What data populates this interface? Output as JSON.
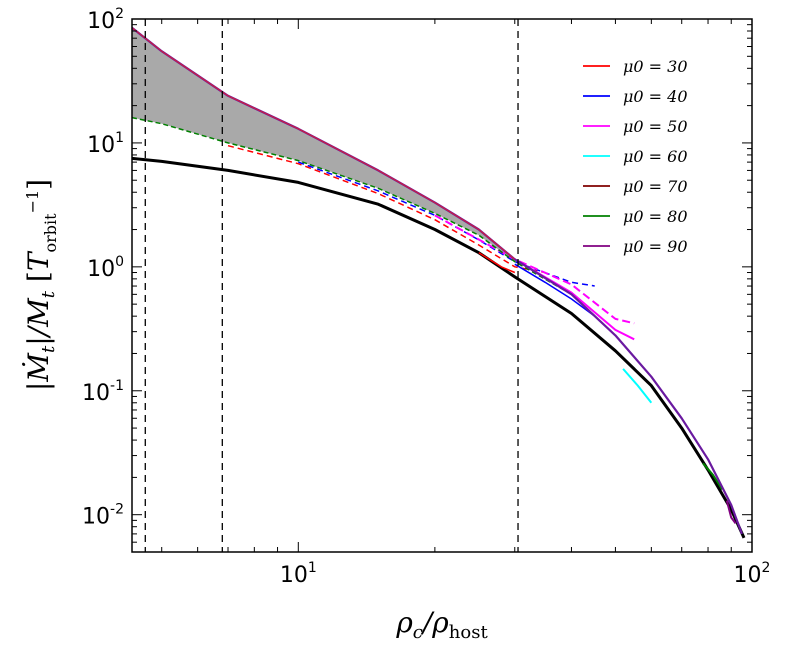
{
  "chart_data": {
    "type": "line",
    "xscale": "log",
    "yscale": "log",
    "xlim": [
      4.3,
      100
    ],
    "ylim": [
      0.005,
      100
    ],
    "xticks": [
      {
        "value": 10,
        "base": "10",
        "exp": "1"
      },
      {
        "value": 100,
        "base": "10",
        "exp": "2"
      }
    ],
    "yticks": [
      {
        "value": 0.01,
        "base": "10",
        "exp": "-2"
      },
      {
        "value": 0.1,
        "base": "10",
        "exp": "-1"
      },
      {
        "value": 1,
        "base": "10",
        "exp": "0"
      },
      {
        "value": 10,
        "base": "10",
        "exp": "1"
      },
      {
        "value": 100,
        "base": "10",
        "exp": "2"
      }
    ],
    "xlabel": "ρc/ρhost",
    "ylabel": "|Ṁt|/Mt [T_orbit^-1]",
    "vertical_lines": [
      4.6,
      6.8,
      30.5
    ],
    "legend_position": "top-right",
    "series": [
      {
        "name": "μ0 = 30",
        "color": "#ff0000"
      },
      {
        "name": "μ0 = 40",
        "color": "#0000ff"
      },
      {
        "name": "μ0 = 50",
        "color": "#ff00ff"
      },
      {
        "name": "μ0 = 60",
        "color": "#00ffff"
      },
      {
        "name": "μ0 = 70",
        "color": "#800000"
      },
      {
        "name": "μ0 = 80",
        "color": "#008000"
      },
      {
        "name": "μ0 = 90",
        "color": "#800080"
      }
    ],
    "curves": {
      "black_solid": [
        [
          4.3,
          7.5
        ],
        [
          5,
          7.1
        ],
        [
          7,
          6.0
        ],
        [
          10,
          4.8
        ],
        [
          15,
          3.2
        ],
        [
          20,
          2.0
        ],
        [
          25,
          1.3
        ],
        [
          30,
          0.83
        ],
        [
          40,
          0.42
        ],
        [
          50,
          0.21
        ],
        [
          60,
          0.11
        ],
        [
          70,
          0.05
        ],
        [
          80,
          0.023
        ],
        [
          90,
          0.011
        ],
        [
          96,
          0.0065
        ]
      ],
      "upper_envelope": [
        [
          4.3,
          85
        ],
        [
          5,
          55
        ],
        [
          7,
          24
        ],
        [
          10,
          13
        ],
        [
          15,
          6
        ],
        [
          20,
          3.3
        ],
        [
          25,
          2.0
        ],
        [
          30,
          1.15
        ],
        [
          40,
          0.6
        ],
        [
          50,
          0.28
        ],
        [
          60,
          0.13
        ],
        [
          70,
          0.06
        ],
        [
          80,
          0.028
        ],
        [
          90,
          0.012
        ],
        [
          95,
          0.007
        ]
      ],
      "lower_envelope": [
        [
          4.3,
          16
        ],
        [
          5,
          14.3
        ],
        [
          7,
          10
        ],
        [
          10,
          7.2
        ],
        [
          15,
          4.3
        ],
        [
          20,
          2.7
        ],
        [
          25,
          1.8
        ],
        [
          30,
          1.1
        ],
        [
          40,
          0.6
        ],
        [
          50,
          0.28
        ],
        [
          60,
          0.13
        ],
        [
          70,
          0.06
        ],
        [
          80,
          0.028
        ],
        [
          90,
          0.012
        ],
        [
          95,
          0.007
        ]
      ],
      "red_dashed": [
        [
          7,
          9.5
        ],
        [
          10,
          6.8
        ],
        [
          15,
          3.9
        ],
        [
          20,
          2.4
        ],
        [
          25,
          1.5
        ],
        [
          30,
          1.0
        ],
        [
          35,
          0.9
        ]
      ],
      "blue_dashed": [
        [
          10,
          7.0
        ],
        [
          15,
          4.1
        ],
        [
          20,
          2.6
        ],
        [
          25,
          1.65
        ],
        [
          30,
          1.1
        ],
        [
          40,
          0.75
        ],
        [
          45,
          0.7
        ]
      ],
      "magenta_dashed": [
        [
          20,
          2.6
        ],
        [
          30,
          1.15
        ],
        [
          40,
          0.72
        ],
        [
          50,
          0.38
        ],
        [
          55,
          0.35
        ]
      ],
      "magenta_solid": [
        [
          30,
          1.15
        ],
        [
          40,
          0.62
        ],
        [
          50,
          0.31
        ],
        [
          55,
          0.26
        ]
      ],
      "blue_solid": [
        [
          30,
          1.05
        ],
        [
          35,
          0.75
        ],
        [
          40,
          0.55
        ],
        [
          45,
          0.4
        ]
      ],
      "red_solid": [
        [
          25,
          1.3
        ],
        [
          28,
          1.0
        ],
        [
          30,
          0.9
        ]
      ],
      "cyan_solid": [
        [
          52,
          0.15
        ],
        [
          56,
          0.11
        ],
        [
          60,
          0.08
        ]
      ],
      "green_solid": [
        [
          78,
          0.026
        ],
        [
          82,
          0.021
        ],
        [
          86,
          0.016
        ]
      ],
      "purple_solid": [
        [
          88,
          0.013
        ],
        [
          90,
          0.0095
        ],
        [
          92,
          0.0085
        ]
      ]
    }
  }
}
